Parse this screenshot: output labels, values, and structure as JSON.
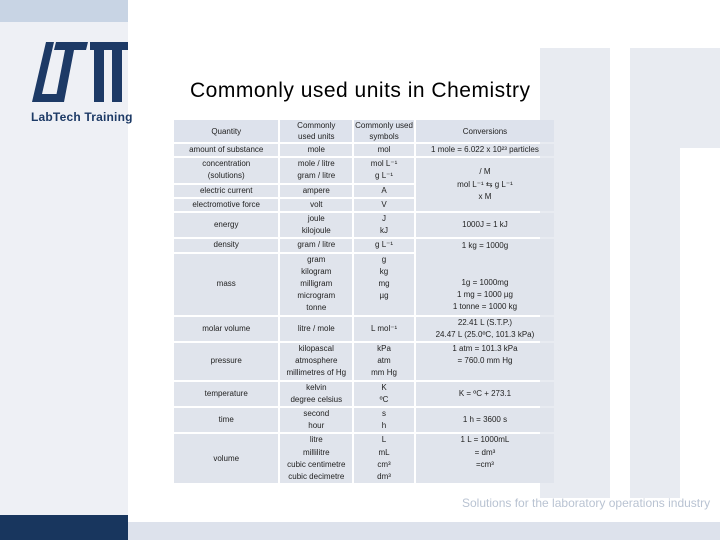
{
  "brand": {
    "logo_text": "LabTech Training",
    "tagline": "Solutions for the laboratory operations industry",
    "colors": {
      "navy": "#18365e",
      "light": "#c8d4e4",
      "watermark": "#e8ebf1"
    }
  },
  "title": "Commonly used units in Chemistry",
  "table": {
    "headers": [
      "Quantity",
      "Commonly used units",
      "Commonly used symbols",
      "Conversions"
    ],
    "rows": {
      "substance": {
        "quantity": "amount of substance",
        "units": [
          "mole"
        ],
        "symbols": [
          "mol"
        ],
        "conv": "1 mole = 6.022 x 10²³ particles"
      },
      "concentration": {
        "quantity": "concentration (solutions)",
        "units": [
          "mole / litre",
          "gram / litre"
        ],
        "symbols": [
          "mol L⁻¹",
          "g L⁻¹"
        ],
        "conv_top": "/ M",
        "conv_mid": "mol L⁻¹ ⇆ g L⁻¹",
        "conv_bottom": "x M"
      },
      "current": {
        "quantity": "electric current",
        "units": [
          "ampere"
        ],
        "symbols": [
          "A"
        ]
      },
      "emf": {
        "quantity": "electromotive force",
        "units": [
          "volt"
        ],
        "symbols": [
          "V"
        ]
      },
      "energy": {
        "quantity": "energy",
        "units": [
          "joule",
          "kilojoule"
        ],
        "symbols": [
          "J",
          "kJ"
        ],
        "conv": "1000J = 1 kJ"
      },
      "density": {
        "quantity": "density",
        "units": [
          "gram / litre"
        ],
        "symbols": [
          "g L⁻¹"
        ]
      },
      "mass": {
        "quantity": "mass",
        "units": [
          "gram",
          "kilogram",
          "milligram",
          "microgram",
          "tonne"
        ],
        "symbols": [
          "g",
          "kg",
          "mg",
          "µg",
          ""
        ],
        "conv": [
          "1 kg = 1000g",
          "",
          "1g = 1000mg",
          "1 mg = 1000 µg",
          "1 tonne = 1000 kg"
        ]
      },
      "molar_volume": {
        "quantity": "molar volume",
        "units": [
          "litre / mole"
        ],
        "symbols": [
          "L mol⁻¹"
        ],
        "conv": [
          "22.41 L (S.T.P.)",
          "24.47 L (25.0ºC, 101.3 kPa)"
        ]
      },
      "pressure": {
        "quantity": "pressure",
        "units": [
          "kilopascal",
          "atmosphere",
          "millimetres of Hg"
        ],
        "symbols": [
          "kPa",
          "atm",
          "mm Hg"
        ],
        "conv": [
          "1 atm = 101.3 kPa",
          "= 760.0 mm Hg"
        ]
      },
      "temperature": {
        "quantity": "temperature",
        "units": [
          "kelvin",
          "degree celsius"
        ],
        "symbols": [
          "K",
          "ºC"
        ],
        "conv": "K = ºC + 273.1"
      },
      "time": {
        "quantity": "time",
        "units": [
          "second",
          "hour"
        ],
        "symbols": [
          "s",
          "h"
        ],
        "conv": "1 h = 3600 s"
      },
      "volume": {
        "quantity": "volume",
        "units": [
          "litre",
          "millilitre",
          "cubic centimetre",
          "cubic decimetre"
        ],
        "symbols": [
          "L",
          "mL",
          "cm³",
          "dm³"
        ],
        "conv": [
          "1 L = 1000mL",
          "= dm³",
          "=cm³"
        ]
      }
    }
  }
}
